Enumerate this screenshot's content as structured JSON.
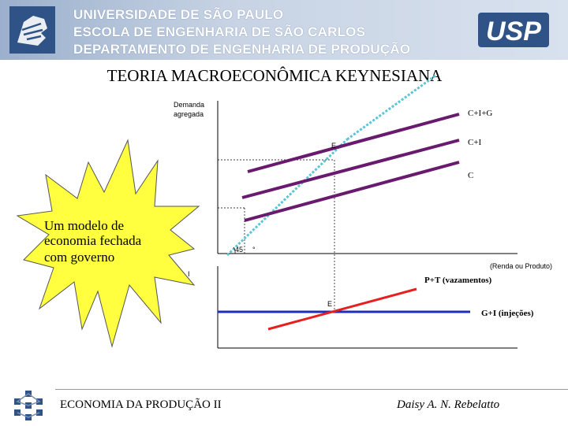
{
  "header": {
    "university": "UNIVERSIDADE DE SÃO PAULO",
    "school": "ESCOLA DE ENGENHARIA DE SÃO CARLOS",
    "department": "DEPARTAMENTO DE ENGENHARIA DE PRODUÇÃO",
    "logo_text": "USP",
    "colors": {
      "band": "#c7d3e4",
      "logo": "#2f5387"
    }
  },
  "title": "TEORIA MACROECONÔMICA KEYNESIANA",
  "burst": {
    "lines": [
      "Um modelo de",
      "economia fechada",
      "com governo"
    ],
    "color": "#ffff40"
  },
  "diagram": {
    "top": {
      "y_axis_label_lines": [
        "Demanda",
        "agregada"
      ],
      "line_labels": {
        "cig": "C+I+G",
        "ci": "C+I",
        "c": "C"
      },
      "equilibrium_label": "E",
      "angle_number": "45",
      "angle_degree": "°",
      "x_axis_label": "(Renda ou Produto)",
      "colors": {
        "aggregate_lines": "#6a1a6e",
        "guide_45": "#5cc5d6"
      }
    },
    "bottom": {
      "y_axis_label": "I",
      "equilibrium_label": "E",
      "leakage_label": "P+T (vazamentos)",
      "injection_label": "G+I (injeções)",
      "colors": {
        "leakage": "#e62020",
        "injection": "#1f2fb5"
      }
    }
  },
  "footer": {
    "course": "ECONOMIA DA PRODUÇÃO II",
    "author": "Daisy A. N. Rebelatto"
  }
}
